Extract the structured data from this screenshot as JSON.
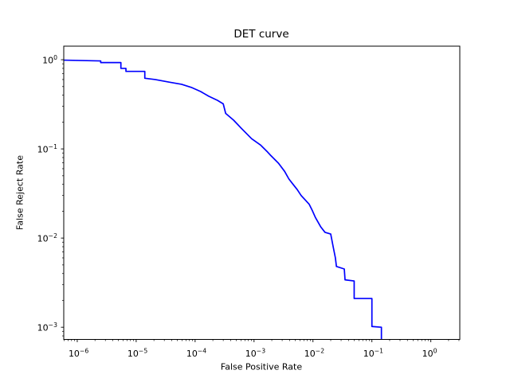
{
  "chart_data": {
    "type": "line",
    "title": "DET curve",
    "xlabel": "False Positive Rate",
    "ylabel": "False Reject Rate",
    "xscale": "log",
    "yscale": "log",
    "xlim": [
      5.9e-07,
      3.1
    ],
    "ylim": [
      0.00073,
      1.42
    ],
    "x_tick_exponents": [
      -6,
      -5,
      -4,
      -3,
      -2,
      -1,
      0
    ],
    "y_tick_exponents": [
      0,
      -1,
      -2,
      -3
    ],
    "grid": false,
    "legend_position": "none",
    "background_color": "#ffffff",
    "axis_color": "#000000",
    "series": [
      {
        "name": "DET curve",
        "color": "#0000ff",
        "linewidth": 1.7,
        "points": [
          [
            5.9e-07,
            0.99
          ],
          [
            2.5e-06,
            0.97
          ],
          [
            2.5e-06,
            0.93
          ],
          [
            5.5e-06,
            0.93
          ],
          [
            5.5e-06,
            0.8
          ],
          [
            6.7e-06,
            0.8
          ],
          [
            6.7e-06,
            0.74
          ],
          [
            1.4e-05,
            0.74
          ],
          [
            1.4e-05,
            0.62
          ],
          [
            2.1e-05,
            0.6
          ],
          [
            3.7e-05,
            0.56
          ],
          [
            5.9e-05,
            0.53
          ],
          [
            8.6e-05,
            0.49
          ],
          [
            0.000124,
            0.44
          ],
          [
            0.00017,
            0.39
          ],
          [
            0.00024,
            0.35
          ],
          [
            0.0003,
            0.32
          ],
          [
            0.00033,
            0.25
          ],
          [
            0.00045,
            0.21
          ],
          [
            0.00061,
            0.17
          ],
          [
            0.00091,
            0.13
          ],
          [
            0.0013,
            0.11
          ],
          [
            0.00165,
            0.094
          ],
          [
            0.0019,
            0.085
          ],
          [
            0.0026,
            0.069
          ],
          [
            0.0033,
            0.056
          ],
          [
            0.0039,
            0.046
          ],
          [
            0.0046,
            0.04
          ],
          [
            0.0054,
            0.035
          ],
          [
            0.0063,
            0.03
          ],
          [
            0.0073,
            0.027
          ],
          [
            0.0086,
            0.024
          ],
          [
            0.0097,
            0.0205
          ],
          [
            0.011,
            0.017
          ],
          [
            0.0124,
            0.0148
          ],
          [
            0.0136,
            0.0133
          ],
          [
            0.016,
            0.0116
          ],
          [
            0.02,
            0.0111
          ],
          [
            0.022,
            0.008
          ],
          [
            0.024,
            0.006
          ],
          [
            0.025,
            0.0048
          ],
          [
            0.034,
            0.0045
          ],
          [
            0.035,
            0.0034
          ],
          [
            0.05,
            0.0033
          ],
          [
            0.05,
            0.0021
          ],
          [
            0.1,
            0.0021
          ],
          [
            0.1,
            0.00102
          ],
          [
            0.145,
            0.001
          ],
          [
            0.145,
            0.00073
          ]
        ]
      }
    ]
  }
}
